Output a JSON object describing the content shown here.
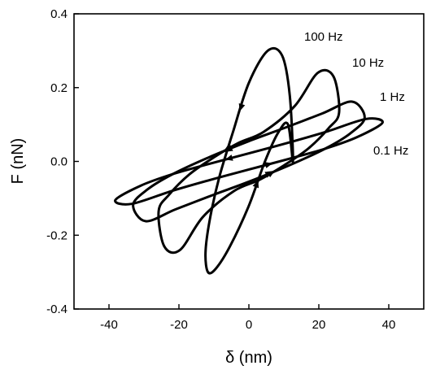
{
  "chart_data": {
    "type": "line",
    "title": "",
    "xlabel": "δ   (nm)",
    "ylabel": "F   (nN)",
    "xlim": [
      -50,
      50
    ],
    "ylim": [
      -0.4,
      0.4
    ],
    "xticks": [
      -40,
      -20,
      0,
      20,
      40
    ],
    "xtick_labels": [
      "-40",
      "-20",
      "0",
      "20",
      "40"
    ],
    "yticks": [
      -0.4,
      -0.2,
      0.0,
      0.2,
      0.4
    ],
    "ytick_labels": [
      "-0.4",
      "-0.2",
      "0.0",
      "0.2",
      "0.4"
    ],
    "grid": false,
    "legend": "none",
    "series": [
      {
        "name": "100 Hz",
        "x": [
          12.6,
          11.7,
          9.5,
          5.4,
          0.0,
          -4.6,
          -8.5,
          -11.2,
          -12.4,
          -11.7,
          -9.4,
          -5.4,
          0.0,
          4.6,
          8.5,
          11.2,
          12.6
        ],
        "y": [
          0.0,
          0.178,
          0.287,
          0.3,
          0.213,
          0.078,
          -0.044,
          -0.159,
          -0.247,
          -0.3,
          -0.29,
          -0.23,
          -0.12,
          0.0,
          0.08,
          0.1,
          0.0
        ]
      },
      {
        "name": "10 Hz",
        "x": [
          25.8,
          24.2,
          19.7,
          13.1,
          4.2,
          -3.0,
          -10.0,
          -17.0,
          -22.8,
          -25.8,
          -24.2,
          -19.7,
          -13.1,
          -4.2,
          3.0,
          10.0,
          17.0,
          22.8,
          25.8
        ],
        "y": [
          0.133,
          0.23,
          0.24,
          0.15,
          0.08,
          0.05,
          0.011,
          -0.035,
          -0.09,
          -0.135,
          -0.23,
          -0.24,
          -0.15,
          -0.08,
          -0.05,
          -0.011,
          0.035,
          0.09,
          0.133
        ]
      },
      {
        "name": "1 Hz",
        "x": [
          33.1,
          29.5,
          21.0,
          10.0,
          0.0,
          -11.7,
          -21.9,
          -29.0,
          -33.1,
          -29.5,
          -21.0,
          -10.0,
          0.0,
          11.7,
          21.9,
          29.0,
          33.1
        ],
        "y": [
          0.118,
          0.162,
          0.13,
          0.09,
          0.055,
          0.01,
          -0.035,
          -0.076,
          -0.118,
          -0.162,
          -0.13,
          -0.09,
          -0.055,
          -0.01,
          0.035,
          0.076,
          0.118
        ]
      },
      {
        "name": "0.1 Hz",
        "x": [
          38.2,
          33.5,
          22.0,
          11.0,
          0.0,
          -11.5,
          -22.0,
          -31.0,
          -38.2,
          -33.5,
          -22.0,
          -11.0,
          0.0,
          11.5,
          22.0,
          31.0,
          38.2
        ],
        "y": [
          0.105,
          0.115,
          0.08,
          0.05,
          0.022,
          -0.007,
          -0.035,
          -0.066,
          -0.105,
          -0.115,
          -0.08,
          -0.05,
          -0.022,
          0.007,
          0.035,
          0.066,
          0.105
        ]
      }
    ],
    "annotations": [
      "100 Hz",
      "10 Hz",
      "1 Hz",
      "0.1 Hz"
    ]
  }
}
